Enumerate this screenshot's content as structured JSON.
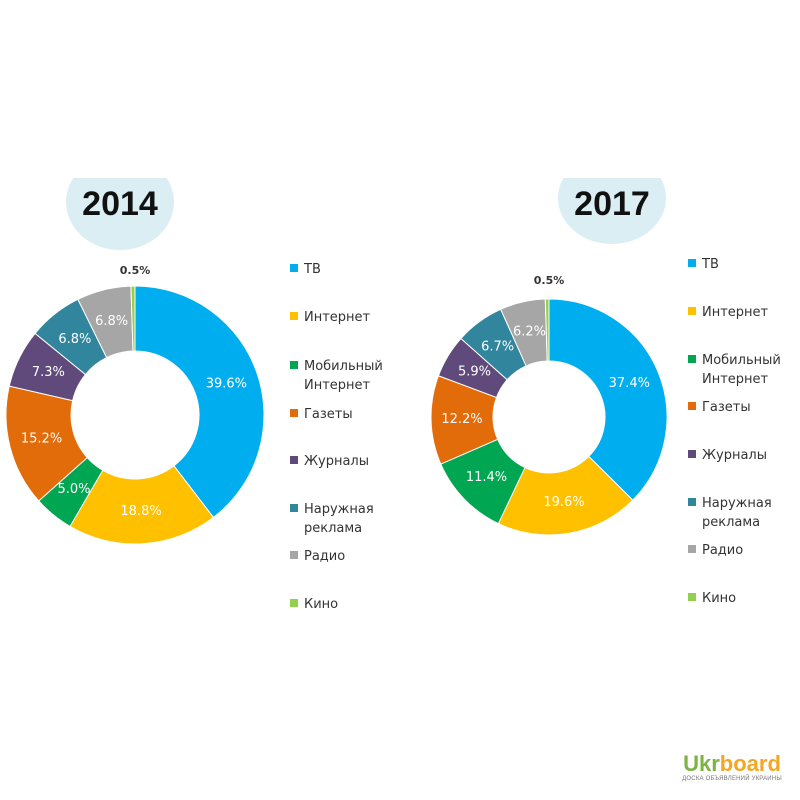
{
  "colors": {
    "tv": "#00aeef",
    "internet": "#ffc000",
    "mobile": "#00a651",
    "newspapers": "#e36c0a",
    "magazines": "#604a7b",
    "outdoor": "#31859c",
    "radio": "#a6a6a6",
    "cinema": "#92d050",
    "year_badge": "#dbeef3"
  },
  "chart_data": [
    {
      "type": "pie",
      "title": "2014",
      "categories": [
        "ТВ",
        "Интернет",
        "Мобильный Интернет",
        "Газеты",
        "Журналы",
        "Наружная реклама",
        "Радио",
        "Кино"
      ],
      "values": [
        39.6,
        18.8,
        5.0,
        15.2,
        7.3,
        6.8,
        6.8,
        0.5
      ],
      "labels": [
        "39.6%",
        "18.8%",
        "5.0%",
        "15.2%",
        "7.3%",
        "6.8%",
        "6.8%",
        "0.5%"
      ],
      "legend": [
        [
          "ТВ"
        ],
        [
          "Интернет"
        ],
        [
          "Мобильный",
          "Интернет"
        ],
        [
          "Газеты"
        ],
        [
          "Журналы"
        ],
        [
          "Наружная",
          "реклама"
        ],
        [
          "Радио"
        ],
        [
          "Кино"
        ]
      ]
    },
    {
      "type": "pie",
      "title": "2017",
      "categories": [
        "ТВ",
        "Интернет",
        "Мобильный Интернет",
        "Газеты",
        "Журналы",
        "Наружная реклама",
        "Радио",
        "Кино"
      ],
      "values": [
        37.4,
        19.6,
        11.4,
        12.2,
        5.9,
        6.7,
        6.2,
        0.5
      ],
      "labels": [
        "37.4%",
        "19.6%",
        "11.4%",
        "12.2%",
        "5.9%",
        "6.7%",
        "6.2%",
        "0.5%"
      ],
      "legend": [
        [
          "ТВ"
        ],
        [
          "Интернет"
        ],
        [
          "Мобильный",
          "Интернет"
        ],
        [
          "Газеты"
        ],
        [
          "Журналы"
        ],
        [
          "Наружная",
          "реклама"
        ],
        [
          "Радио"
        ],
        [
          "Кино"
        ]
      ]
    }
  ],
  "watermark": {
    "brand_left": "Ukr",
    "brand_right": "board",
    "tagline": "ДОСКА ОБЪЯВЛЕНИЙ УКРАИНЫ"
  }
}
